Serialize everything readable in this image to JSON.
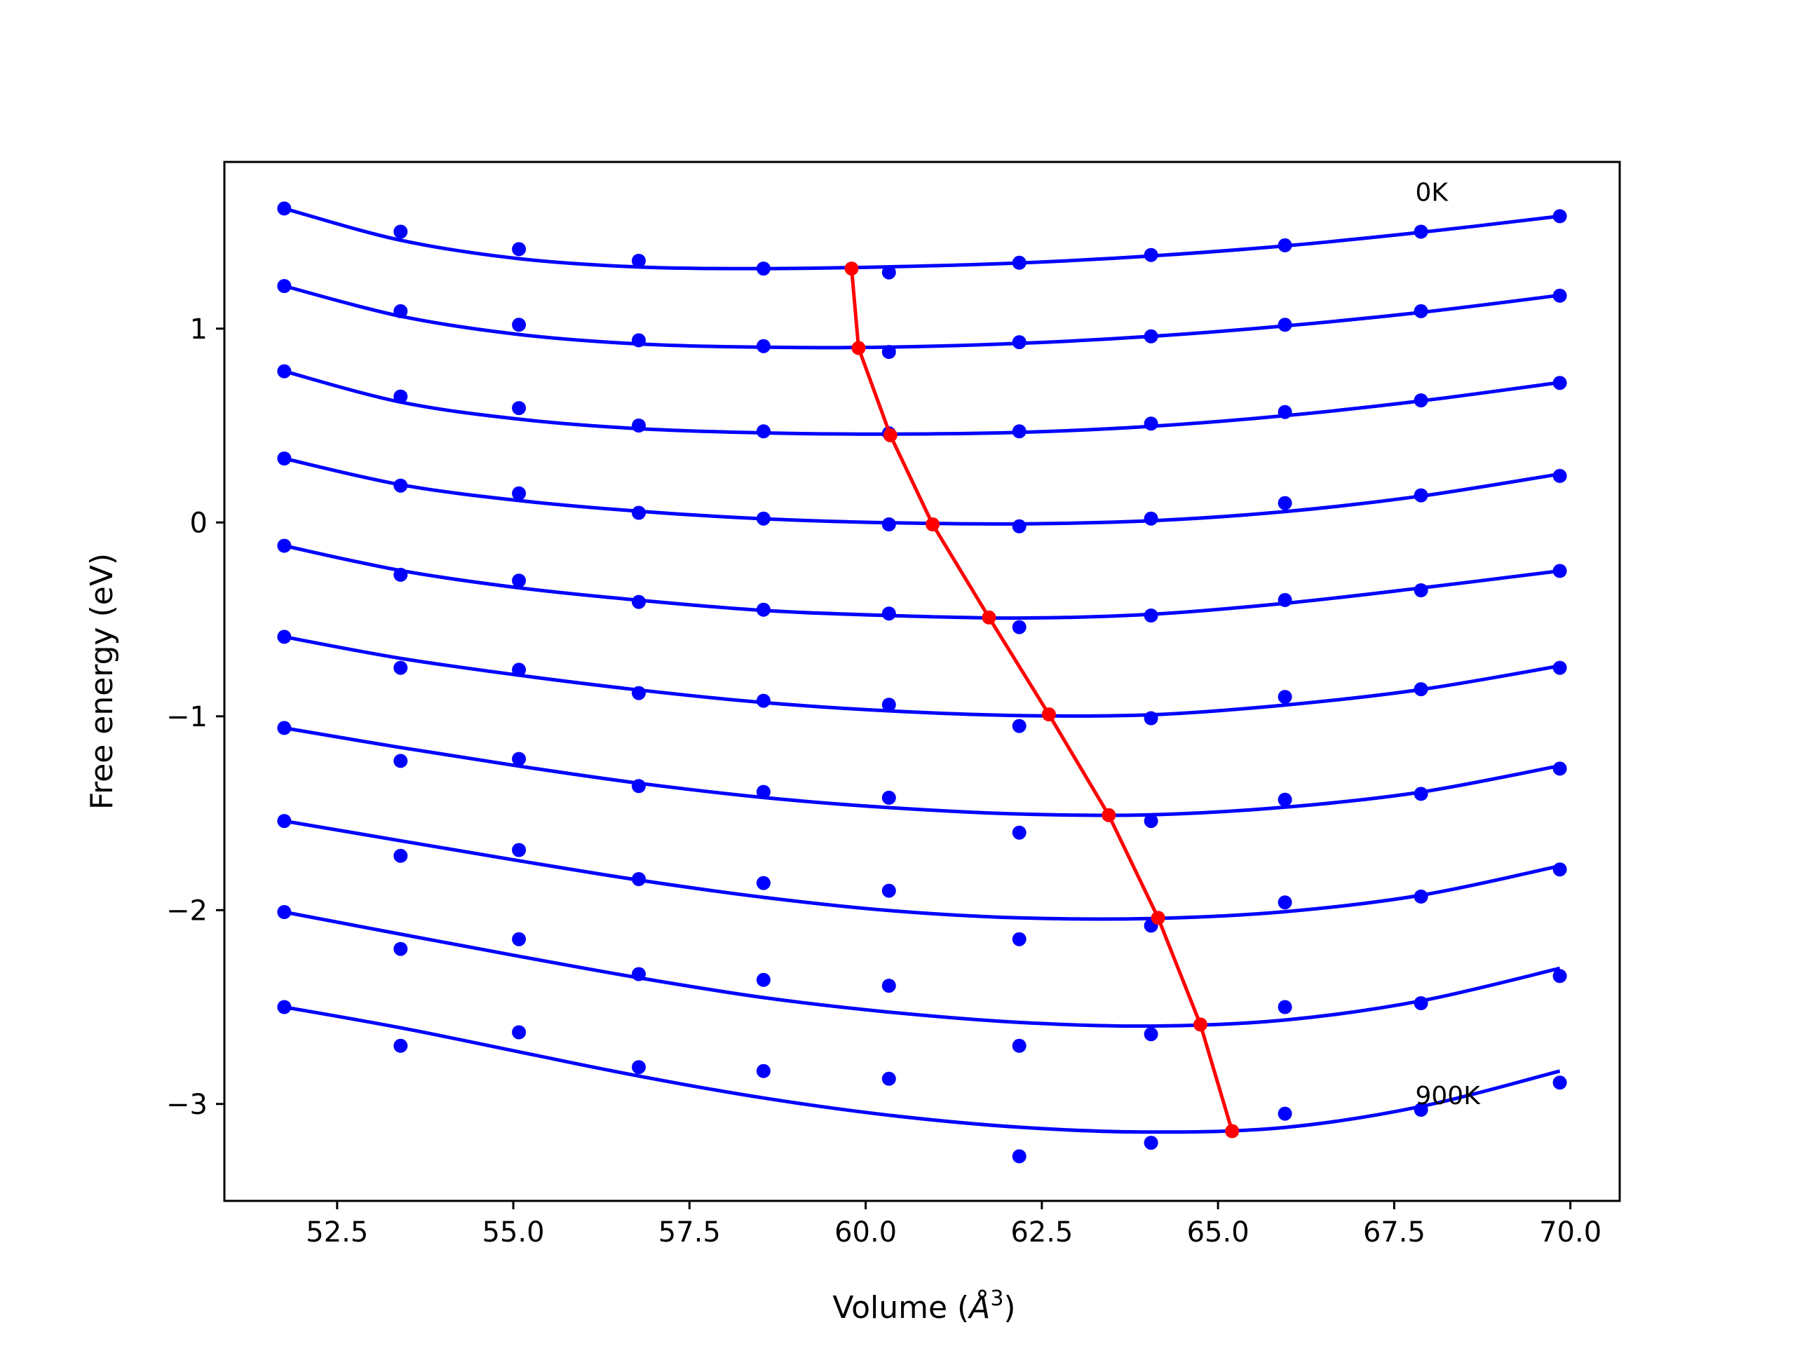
{
  "chart_data": {
    "type": "line",
    "title": "",
    "xlabel": "Volume (",
    "xlabel_unit_base": "Å",
    "xlabel_unit_sup": "3",
    "xlabel_close": ")",
    "ylabel": "Free energy (eV)",
    "xlim": [
      50.9,
      70.7
    ],
    "ylim": [
      -3.5,
      1.86
    ],
    "xticks": [
      52.5,
      55.0,
      57.5,
      60.0,
      62.5,
      65.0,
      67.5,
      70.0
    ],
    "xtick_labels": [
      "52.5",
      "55.0",
      "57.5",
      "60.0",
      "62.5",
      "65.0",
      "67.5",
      "70.0"
    ],
    "yticks": [
      -3,
      -2,
      -1,
      0,
      1
    ],
    "ytick_labels": [
      "−3",
      "−2",
      "−1",
      "0",
      "1"
    ],
    "grid": false,
    "annotations": [
      {
        "text": "0K",
        "x": 67.8,
        "y": 1.66
      },
      {
        "text": "900K",
        "x": 67.8,
        "y": -3.0
      }
    ],
    "x": [
      51.75,
      53.4,
      55.08,
      56.78,
      58.55,
      60.33,
      62.18,
      64.05,
      65.95,
      67.88,
      69.85
    ],
    "series": [
      {
        "points_y": [
          1.62,
          1.5,
          1.41,
          1.35,
          1.31,
          1.29,
          1.34,
          1.38,
          1.43,
          1.5,
          1.58
        ],
        "fit": [
          1.62,
          1.456,
          1.361,
          1.318,
          1.31,
          1.319,
          1.339,
          1.375,
          1.427,
          1.497,
          1.58
        ]
      },
      {
        "points_y": [
          1.22,
          1.09,
          1.02,
          0.94,
          0.91,
          0.88,
          0.93,
          0.96,
          1.02,
          1.09,
          1.17
        ],
        "fit": [
          1.22,
          1.064,
          0.97,
          0.921,
          0.904,
          0.905,
          0.924,
          0.96,
          1.014,
          1.084,
          1.172
        ]
      },
      {
        "points_y": [
          0.78,
          0.65,
          0.59,
          0.5,
          0.47,
          0.46,
          0.47,
          0.51,
          0.57,
          0.63,
          0.72
        ],
        "fit": [
          0.78,
          0.621,
          0.533,
          0.484,
          0.462,
          0.456,
          0.465,
          0.496,
          0.551,
          0.627,
          0.722
        ]
      },
      {
        "points_y": [
          0.33,
          0.19,
          0.15,
          0.05,
          0.02,
          -0.01,
          -0.02,
          0.02,
          0.1,
          0.14,
          0.24
        ],
        "fit": [
          0.33,
          0.195,
          0.113,
          0.058,
          0.019,
          -0.001,
          -0.007,
          0.009,
          0.056,
          0.136,
          0.25
        ]
      },
      {
        "points_y": [
          -0.12,
          -0.27,
          -0.3,
          -0.41,
          -0.45,
          -0.47,
          -0.54,
          -0.48,
          -0.4,
          -0.35,
          -0.25
        ],
        "fit": [
          -0.12,
          -0.248,
          -0.337,
          -0.401,
          -0.454,
          -0.48,
          -0.493,
          -0.474,
          -0.417,
          -0.338,
          -0.25
        ]
      },
      {
        "points_y": [
          -0.59,
          -0.75,
          -0.76,
          -0.88,
          -0.92,
          -0.94,
          -1.05,
          -1.01,
          -0.9,
          -0.86,
          -0.75
        ],
        "fit": [
          -0.59,
          -0.701,
          -0.788,
          -0.864,
          -0.929,
          -0.972,
          -0.996,
          -0.992,
          -0.942,
          -0.862,
          -0.74
        ]
      },
      {
        "points_y": [
          -1.06,
          -1.23,
          -1.22,
          -1.36,
          -1.39,
          -1.42,
          -1.6,
          -1.54,
          -1.43,
          -1.4,
          -1.27
        ],
        "fit": [
          -1.06,
          -1.161,
          -1.257,
          -1.345,
          -1.419,
          -1.471,
          -1.504,
          -1.508,
          -1.469,
          -1.391,
          -1.255
        ]
      },
      {
        "points_y": [
          -1.54,
          -1.72,
          -1.69,
          -1.84,
          -1.86,
          -1.9,
          -2.15,
          -2.08,
          -1.96,
          -1.93,
          -1.79
        ],
        "fit": [
          -1.54,
          -1.642,
          -1.745,
          -1.845,
          -1.934,
          -2.002,
          -2.04,
          -2.043,
          -2.008,
          -1.923,
          -1.772
        ]
      },
      {
        "points_y": [
          -2.01,
          -2.2,
          -2.15,
          -2.33,
          -2.36,
          -2.39,
          -2.7,
          -2.64,
          -2.5,
          -2.48,
          -2.34
        ],
        "fit": [
          -2.01,
          -2.124,
          -2.238,
          -2.349,
          -2.451,
          -2.526,
          -2.579,
          -2.598,
          -2.567,
          -2.468,
          -2.3
        ]
      },
      {
        "points_y": [
          -2.5,
          -2.7,
          -2.63,
          -2.81,
          -2.83,
          -2.87,
          -3.27,
          -3.2,
          -3.05,
          -3.03,
          -2.89
        ],
        "fit": [
          -2.5,
          -2.607,
          -2.731,
          -2.856,
          -2.969,
          -3.058,
          -3.12,
          -3.145,
          -3.121,
          -3.013,
          -2.83
        ]
      }
    ],
    "minima": {
      "x": [
        59.8,
        59.9,
        60.35,
        60.95,
        61.75,
        62.6,
        63.45,
        64.15,
        64.75,
        65.2
      ],
      "y": [
        1.31,
        0.9,
        0.45,
        -0.01,
        -0.49,
        -0.99,
        -1.51,
        -2.04,
        -2.59,
        -3.14
      ]
    },
    "colors": {
      "series": "#0000ff",
      "minima": "#ff0000",
      "axes": "#000000"
    }
  }
}
